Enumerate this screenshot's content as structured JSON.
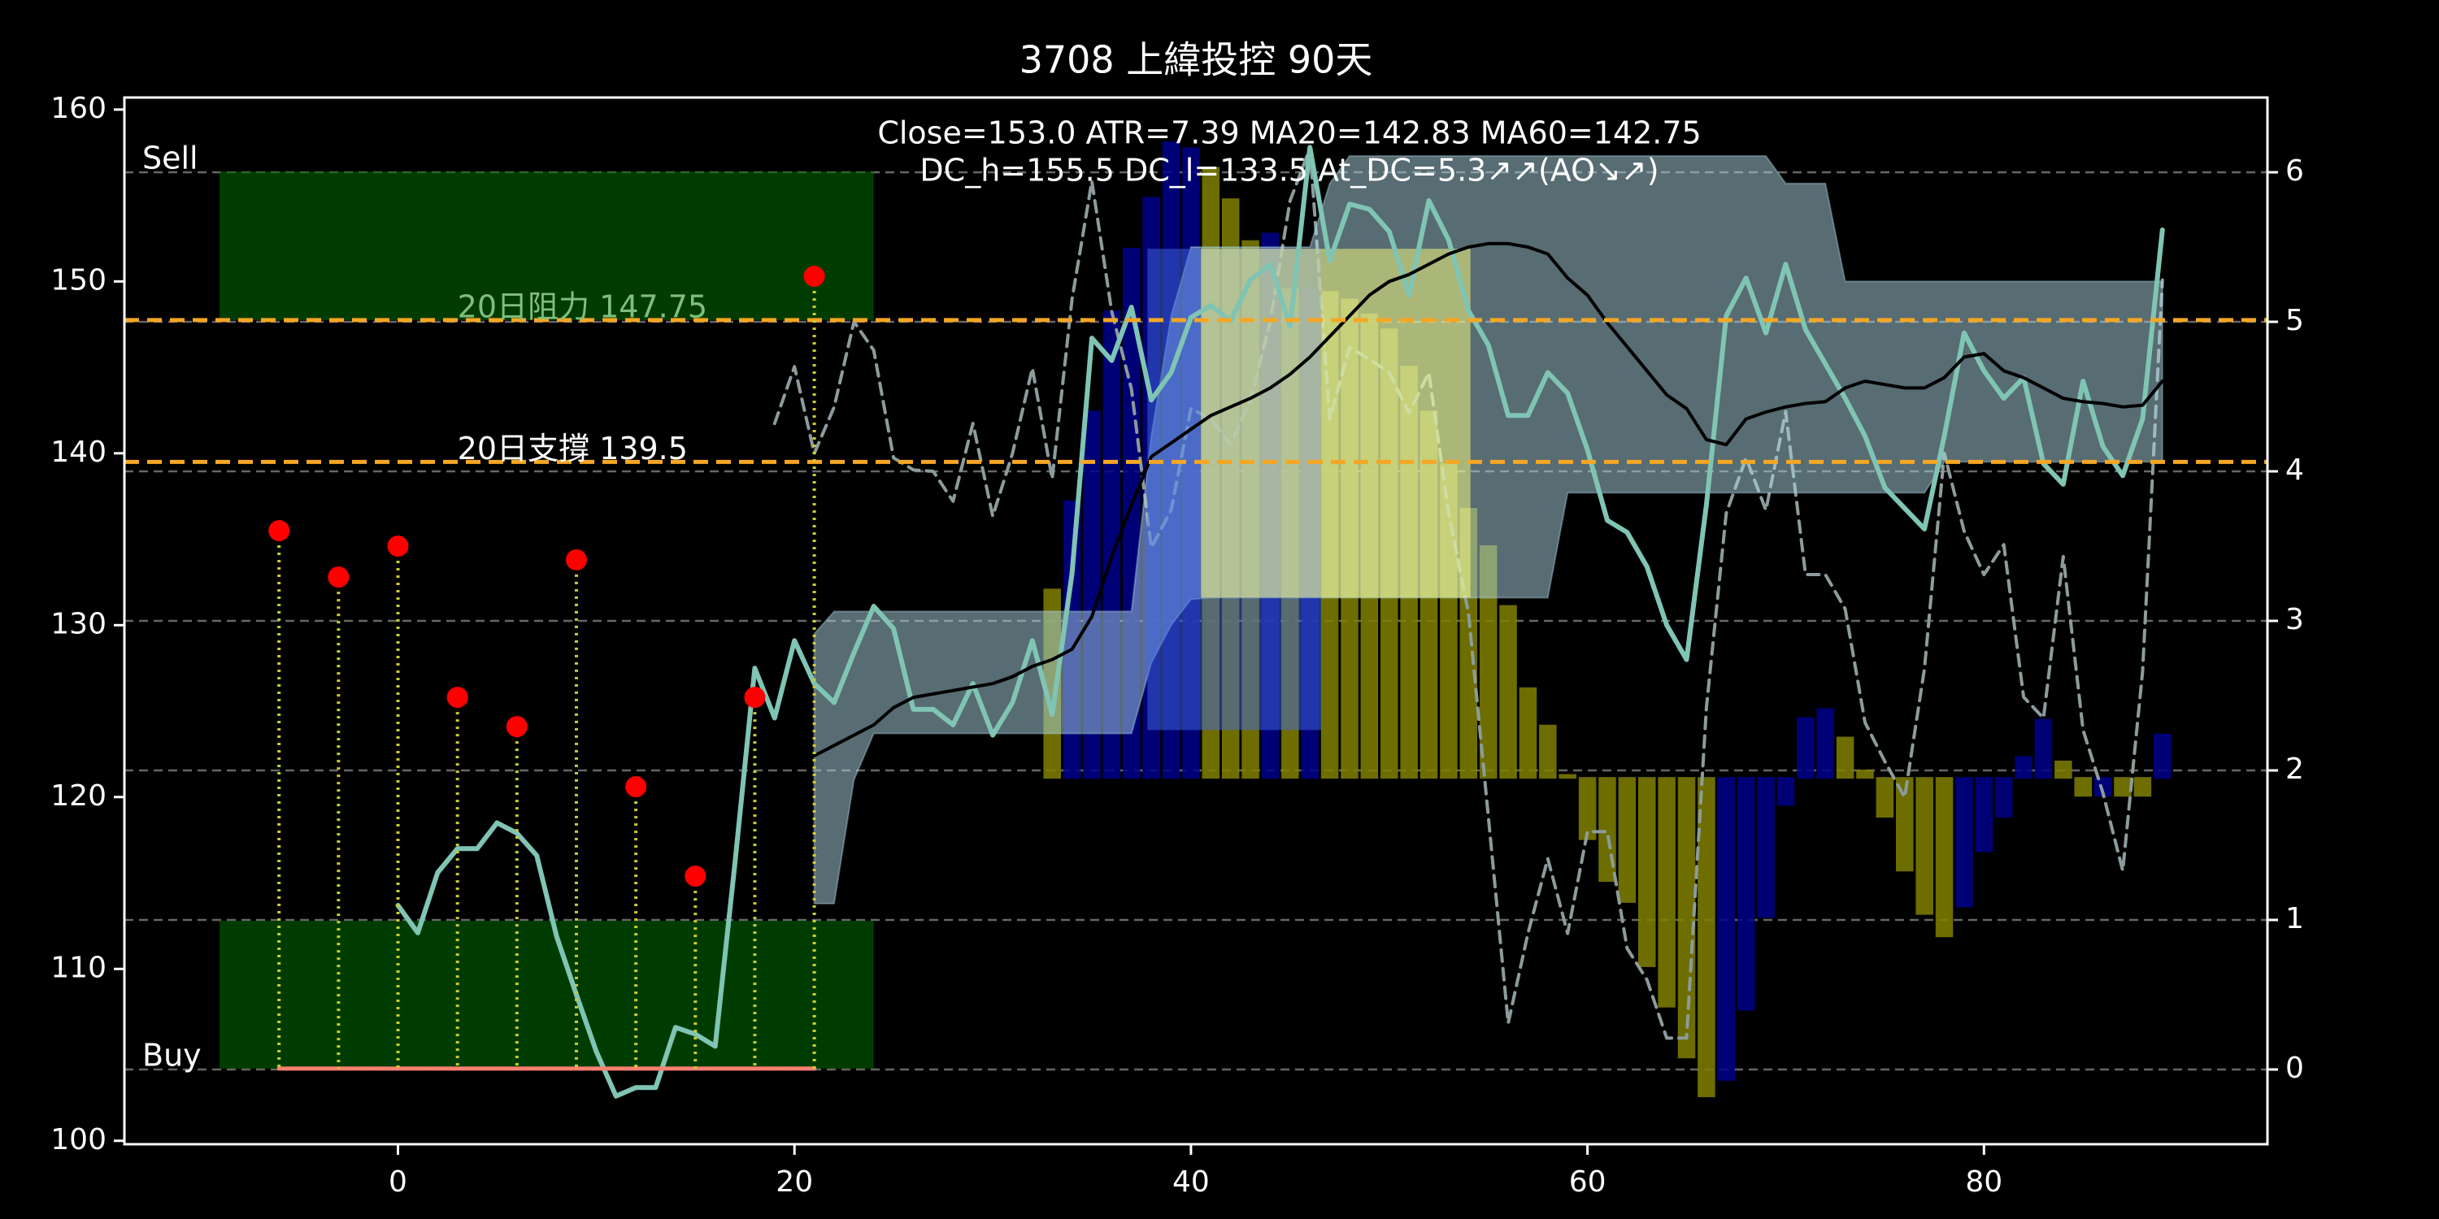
{
  "chart_data": {
    "type": "line",
    "title": "3708 上緯投控 90天",
    "annotation": [
      "Close=153.0 ATR=7.39 MA20=142.83 MA60=142.75",
      "DC_h=155.5 DC_l=133.5 At_DC=5.3↗↗(AO↘↗)"
    ],
    "xlim": [
      -13.8,
      94.3
    ],
    "xticks": [
      0,
      20,
      40,
      60,
      80
    ],
    "ylim": [
      99.8,
      160.7
    ],
    "yticks": [
      100,
      110,
      120,
      130,
      140,
      150,
      160
    ],
    "y2lim": [
      -0.5,
      6.5
    ],
    "y2ticks": [
      0,
      1,
      2,
      3,
      4,
      5,
      6
    ],
    "grid": "y2",
    "zones": [
      {
        "label": "Sell",
        "x": [
          -9,
          24
        ],
        "y": [
          147.75,
          156.4
        ],
        "color": "#006400"
      },
      {
        "label": "Buy",
        "x": [
          -9,
          24
        ],
        "y": [
          104.2,
          112.8
        ],
        "color": "#006400"
      }
    ],
    "band": {
      "x": [
        21,
        22,
        23,
        24,
        37,
        38,
        39,
        40,
        41,
        46,
        47,
        48,
        54,
        55,
        58,
        59,
        69,
        70,
        72,
        73,
        77,
        78,
        88,
        89
      ],
      "upper": [
        129.5,
        130.8,
        130.8,
        130.8,
        130.8,
        141,
        148,
        152,
        152,
        152,
        155.7,
        157.3,
        157.3,
        157.3,
        157.3,
        157.3,
        157.3,
        155.7,
        155.7,
        150,
        150,
        150,
        150,
        150
      ],
      "lower": [
        113.8,
        113.8,
        121,
        123.7,
        123.7,
        127.8,
        130,
        131.5,
        131.6,
        131.6,
        131.6,
        131.6,
        131.6,
        131.6,
        131.6,
        137.7,
        137.7,
        137.7,
        137.7,
        137.7,
        137.7,
        139.5,
        139.5,
        139.5
      ],
      "color": "#add8e6"
    },
    "boxes": [
      {
        "x": [
          37.8,
          46.6
        ],
        "y": [
          123.9,
          151.9
        ],
        "color": "#4169e1"
      },
      {
        "x": [
          40.5,
          54.1
        ],
        "y": [
          131.6,
          151.9
        ],
        "color": "#ffff80"
      }
    ],
    "levels": [
      {
        "label": "20日阻力 147.75",
        "value": 147.75,
        "color": "#f5a623",
        "text_color": "#7fbf7f"
      },
      {
        "label": "20日支撐 139.5",
        "value": 139.5,
        "color": "#f5a623",
        "text_color": "#ffffff"
      }
    ],
    "series": [
      {
        "kind": "bar",
        "axis": "y2",
        "base": 1.95,
        "color": "#808000",
        "x": [
          33,
          41,
          42,
          43,
          45,
          47,
          48,
          49,
          50,
          51,
          52,
          53,
          54,
          55,
          56,
          57,
          58,
          59,
          60,
          61,
          62,
          63,
          64,
          65,
          66,
          73,
          74,
          75,
          76,
          77,
          78,
          84,
          85,
          87,
          88
        ],
        "values": [
          3.21,
          6.03,
          5.82,
          5.54,
          5.22,
          5.2,
          5.15,
          5.05,
          4.95,
          4.7,
          4.4,
          4.05,
          3.75,
          3.5,
          3.1,
          2.55,
          2.3,
          1.97,
          1.54,
          1.26,
          1.12,
          0.69,
          0.42,
          0.08,
          -0.18,
          2.22,
          2.0,
          1.69,
          1.33,
          1.04,
          0.89,
          2.06,
          1.83,
          1.83,
          1.83
        ]
      },
      {
        "kind": "bar",
        "axis": "y2",
        "base": 1.95,
        "color": "#00008b",
        "x": [
          34,
          35,
          36,
          37,
          38,
          39,
          40,
          44,
          46,
          67,
          68,
          69,
          70,
          71,
          72,
          79,
          80,
          81,
          82,
          83,
          86,
          89
        ],
        "values": [
          3.8,
          4.4,
          5.07,
          5.49,
          5.83,
          6.2,
          6.16,
          5.59,
          5.23,
          -0.07,
          0.4,
          1.02,
          1.77,
          2.35,
          2.41,
          1.09,
          1.46,
          1.69,
          2.09,
          2.34,
          1.83,
          2.24
        ]
      },
      {
        "kind": "line",
        "axis": "y2",
        "dash": true,
        "color": "#8c9c9c",
        "width": 4,
        "x": [
          19,
          20,
          21,
          22,
          23,
          24,
          25,
          26,
          27,
          28,
          29,
          30,
          31,
          32,
          33,
          34,
          35,
          36,
          37,
          38,
          39,
          40,
          41,
          42,
          43,
          44,
          45,
          46,
          47,
          48,
          49,
          50,
          51,
          52,
          53,
          54,
          55,
          56,
          57,
          58,
          59,
          60,
          61,
          62,
          63,
          64,
          65,
          66,
          67,
          68,
          69,
          70,
          71,
          72,
          73,
          74,
          75,
          76,
          77,
          78,
          79,
          80,
          81,
          82,
          83,
          84,
          85,
          86,
          87,
          88,
          89
        ],
        "values": [
          4.32,
          4.7,
          4.12,
          4.43,
          5.0,
          4.81,
          4.09,
          4.01,
          4.0,
          3.8,
          4.32,
          3.7,
          4.12,
          4.69,
          3.95,
          5.15,
          5.94,
          5.07,
          4.55,
          3.49,
          3.74,
          4.42,
          4.35,
          4.18,
          4.48,
          5.0,
          5.81,
          6.16,
          4.35,
          4.83,
          4.75,
          4.66,
          4.39,
          4.66,
          3.72,
          3.05,
          1.69,
          0.31,
          0.91,
          1.41,
          0.91,
          1.59,
          1.59,
          0.81,
          0.6,
          0.21,
          0.21,
          2.42,
          3.72,
          4.09,
          3.74,
          4.4,
          3.31,
          3.31,
          3.08,
          2.32,
          2.06,
          1.82,
          2.68,
          4.12,
          3.6,
          3.31,
          3.51,
          2.49,
          2.35,
          3.43,
          2.27,
          1.85,
          1.33,
          2.66,
          5.28
        ]
      },
      {
        "kind": "line",
        "axis": "y",
        "color": "#80c4b4",
        "width": 6,
        "x": [
          0,
          1,
          2,
          3,
          4,
          5,
          6,
          7,
          8,
          9,
          10,
          11,
          12,
          13,
          14,
          15,
          16,
          17,
          18,
          19,
          20,
          21,
          22,
          23,
          24,
          25,
          26,
          27,
          28,
          29,
          30,
          31,
          32,
          33,
          34,
          35,
          36,
          37,
          38,
          39,
          40,
          41,
          42,
          43,
          44,
          45,
          46,
          47,
          48,
          49,
          50,
          51,
          52,
          53,
          54,
          55,
          56,
          57,
          58,
          59,
          60,
          61,
          62,
          63,
          64,
          65,
          66,
          67,
          68,
          69,
          70,
          71,
          72,
          73,
          74,
          75,
          76,
          77,
          78,
          79,
          80,
          81,
          82,
          83,
          84,
          85,
          86,
          87,
          88,
          89
        ],
        "values": [
          113.7,
          112.1,
          115.6,
          117.0,
          117.0,
          118.5,
          117.9,
          116.6,
          111.9,
          108.5,
          105.2,
          102.6,
          103.1,
          103.1,
          106.6,
          106.2,
          105.5,
          116.2,
          127.5,
          124.6,
          129.1,
          126.6,
          125.5,
          128.4,
          131.1,
          129.8,
          125.1,
          125.1,
          124.2,
          126.6,
          123.6,
          125.5,
          129.1,
          124.8,
          133.0,
          146.7,
          145.4,
          148.5,
          143.1,
          144.7,
          147.9,
          148.6,
          147.7,
          150.1,
          151.0,
          147.4,
          157.8,
          151.2,
          154.5,
          154.2,
          152.9,
          149.2,
          154.7,
          152.4,
          148.3,
          146.3,
          142.2,
          142.2,
          144.7,
          143.5,
          140.2,
          136.1,
          135.4,
          133.4,
          130.0,
          128.0,
          137.0,
          148.0,
          150.2,
          147.0,
          151.0,
          147.2,
          145.2,
          143.2,
          141.0,
          138.0,
          136.8,
          135.6,
          141.0,
          147.0,
          144.8,
          143.2,
          144.4,
          139.4,
          138.2,
          144.2,
          140.4,
          138.7,
          142.0,
          153.0
        ]
      },
      {
        "kind": "line",
        "axis": "y",
        "color": "#000000",
        "width": 4,
        "x": [
          21,
          22,
          23,
          24,
          25,
          26,
          27,
          28,
          29,
          30,
          31,
          32,
          33,
          34,
          35,
          36,
          37,
          38,
          39,
          40,
          41,
          42,
          43,
          44,
          45,
          46,
          47,
          48,
          49,
          50,
          51,
          52,
          53,
          54,
          55,
          56,
          57,
          58,
          59,
          60,
          61,
          62,
          63,
          64,
          65,
          66,
          67,
          68,
          69,
          70,
          71,
          72,
          73,
          74,
          75,
          76,
          77,
          78,
          79,
          80,
          81,
          82,
          83,
          84,
          85,
          86,
          87,
          88,
          89
        ],
        "values": [
          122.4,
          123.0,
          123.6,
          124.2,
          125.2,
          125.8,
          126.0,
          126.2,
          126.4,
          126.6,
          127.0,
          127.6,
          128.0,
          128.6,
          130.5,
          134.0,
          137.0,
          139.8,
          140.6,
          141.4,
          142.2,
          142.7,
          143.2,
          143.8,
          144.6,
          145.6,
          146.8,
          148.0,
          149.2,
          150.0,
          150.4,
          151.0,
          151.6,
          152.0,
          152.2,
          152.2,
          152.0,
          151.6,
          150.2,
          149.2,
          147.6,
          146.2,
          144.8,
          143.4,
          142.6,
          140.8,
          140.5,
          142.0,
          142.4,
          142.7,
          142.9,
          143.0,
          143.8,
          144.2,
          144.0,
          143.8,
          143.8,
          144.4,
          145.6,
          145.8,
          144.8,
          144.4,
          143.8,
          143.2,
          143.0,
          142.9,
          142.7,
          142.8,
          144.2
        ]
      },
      {
        "kind": "line",
        "axis": "y",
        "color": "#fa8072",
        "width": 5,
        "x": [
          -6,
          21
        ],
        "values": [
          104.2,
          104.2
        ]
      }
    ],
    "peaks": {
      "x": [
        -6,
        -3,
        0,
        3,
        6,
        9,
        12,
        15,
        18,
        21
      ],
      "values": [
        135.5,
        132.8,
        134.6,
        125.8,
        124.1,
        133.8,
        120.6,
        115.4,
        125.8,
        150.3
      ],
      "stem_base": 104.2,
      "color": "#ff0000",
      "stem_color": "#cccc33"
    }
  }
}
